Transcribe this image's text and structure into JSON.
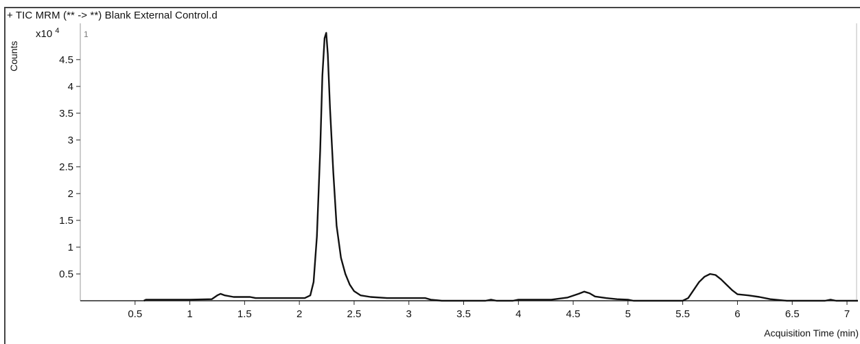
{
  "header": {
    "title": "+ TIC MRM (** -> **) Blank External Control.d",
    "panel_number": "1",
    "y_multiplier_base": "x10",
    "y_multiplier_exp": "4"
  },
  "chart_data": {
    "type": "line",
    "title": "+ TIC MRM (** -> **) Blank External Control.d",
    "xlabel": "Acquisition Time (min)",
    "ylabel": "Counts",
    "y_multiplier": "x10^4",
    "xlim": [
      0,
      7.1
    ],
    "ylim": [
      0,
      5.1
    ],
    "x_ticks": [
      0.5,
      1,
      1.5,
      2,
      2.5,
      3,
      3.5,
      4,
      4.5,
      5,
      5.5,
      6,
      6.5,
      7
    ],
    "x_tick_labels": [
      "0.5",
      "1",
      "1.5",
      "2",
      "2.5",
      "3",
      "3.5",
      "4",
      "4.5",
      "5",
      "5.5",
      "6",
      "6.5",
      "7"
    ],
    "y_ticks": [
      0.5,
      1,
      1.5,
      2,
      2.5,
      3,
      3.5,
      4,
      4.5
    ],
    "y_tick_labels": [
      "0.5",
      "1",
      "1.5",
      "2",
      "2.5",
      "3",
      "3.5",
      "4",
      "4.5"
    ],
    "grid": false,
    "series": [
      {
        "color": "#111111",
        "points": [
          [
            0.58,
            0.0
          ],
          [
            0.6,
            0.02
          ],
          [
            0.8,
            0.02
          ],
          [
            1.0,
            0.02
          ],
          [
            1.2,
            0.03
          ],
          [
            1.25,
            0.1
          ],
          [
            1.28,
            0.13
          ],
          [
            1.32,
            0.1
          ],
          [
            1.4,
            0.07
          ],
          [
            1.55,
            0.07
          ],
          [
            1.6,
            0.05
          ],
          [
            1.9,
            0.05
          ],
          [
            2.05,
            0.05
          ],
          [
            2.1,
            0.1
          ],
          [
            2.13,
            0.35
          ],
          [
            2.16,
            1.2
          ],
          [
            2.19,
            2.8
          ],
          [
            2.21,
            4.2
          ],
          [
            2.23,
            4.9
          ],
          [
            2.245,
            5.0
          ],
          [
            2.26,
            4.6
          ],
          [
            2.28,
            3.6
          ],
          [
            2.31,
            2.4
          ],
          [
            2.34,
            1.4
          ],
          [
            2.38,
            0.8
          ],
          [
            2.42,
            0.5
          ],
          [
            2.46,
            0.3
          ],
          [
            2.5,
            0.18
          ],
          [
            2.56,
            0.1
          ],
          [
            2.65,
            0.07
          ],
          [
            2.8,
            0.05
          ],
          [
            3.0,
            0.05
          ],
          [
            3.15,
            0.05
          ],
          [
            3.2,
            0.02
          ],
          [
            3.3,
            0.0
          ],
          [
            3.5,
            0.0
          ],
          [
            3.7,
            0.0
          ],
          [
            3.75,
            0.02
          ],
          [
            3.8,
            0.0
          ],
          [
            3.95,
            0.0
          ],
          [
            4.0,
            0.02
          ],
          [
            4.3,
            0.02
          ],
          [
            4.45,
            0.06
          ],
          [
            4.55,
            0.13
          ],
          [
            4.6,
            0.17
          ],
          [
            4.65,
            0.14
          ],
          [
            4.7,
            0.08
          ],
          [
            4.8,
            0.05
          ],
          [
            4.9,
            0.03
          ],
          [
            5.0,
            0.02
          ],
          [
            5.05,
            0.0
          ],
          [
            5.5,
            0.0
          ],
          [
            5.55,
            0.05
          ],
          [
            5.6,
            0.2
          ],
          [
            5.65,
            0.35
          ],
          [
            5.7,
            0.45
          ],
          [
            5.75,
            0.5
          ],
          [
            5.8,
            0.48
          ],
          [
            5.85,
            0.4
          ],
          [
            5.9,
            0.3
          ],
          [
            5.95,
            0.2
          ],
          [
            6.0,
            0.12
          ],
          [
            6.1,
            0.1
          ],
          [
            6.2,
            0.07
          ],
          [
            6.3,
            0.03
          ],
          [
            6.45,
            0.0
          ],
          [
            6.8,
            0.0
          ],
          [
            6.85,
            0.02
          ],
          [
            6.9,
            0.0
          ],
          [
            7.1,
            0.0
          ]
        ]
      }
    ]
  }
}
